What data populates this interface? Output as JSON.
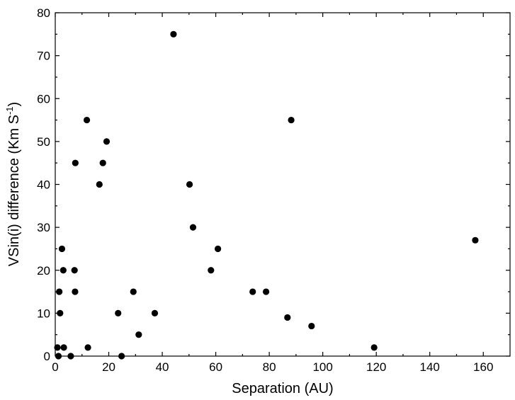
{
  "chart_data": {
    "type": "scatter",
    "title": "",
    "xlabel": "Separation (AU)",
    "ylabel_main": "VSin(i) difference (Km S",
    "ylabel_sup": "-1",
    "ylabel_end": ")",
    "xlim": [
      0,
      170
    ],
    "ylim": [
      0,
      80
    ],
    "x_ticks": [
      0,
      20,
      40,
      60,
      80,
      100,
      120,
      140,
      160
    ],
    "y_ticks": [
      0,
      10,
      20,
      30,
      40,
      50,
      60,
      70,
      80
    ],
    "x_minor_step": 10,
    "y_minor_step": 5,
    "grid": false,
    "legend": "none",
    "marker_color": "#000000",
    "points": [
      {
        "x": 0.8,
        "y": 2
      },
      {
        "x": 1.2,
        "y": 0
      },
      {
        "x": 1.5,
        "y": 15
      },
      {
        "x": 1.8,
        "y": 10
      },
      {
        "x": 2.5,
        "y": 25
      },
      {
        "x": 3.0,
        "y": 20
      },
      {
        "x": 3.2,
        "y": 2
      },
      {
        "x": 5.8,
        "y": 0
      },
      {
        "x": 7.2,
        "y": 20
      },
      {
        "x": 7.4,
        "y": 15
      },
      {
        "x": 7.5,
        "y": 45
      },
      {
        "x": 11.8,
        "y": 55
      },
      {
        "x": 12.2,
        "y": 2
      },
      {
        "x": 16.5,
        "y": 40
      },
      {
        "x": 17.8,
        "y": 45
      },
      {
        "x": 19.2,
        "y": 50
      },
      {
        "x": 23.5,
        "y": 10
      },
      {
        "x": 24.8,
        "y": 0
      },
      {
        "x": 29.2,
        "y": 15
      },
      {
        "x": 31.2,
        "y": 5
      },
      {
        "x": 37.2,
        "y": 10
      },
      {
        "x": 44.2,
        "y": 75
      },
      {
        "x": 50.2,
        "y": 40
      },
      {
        "x": 51.5,
        "y": 30
      },
      {
        "x": 58.2,
        "y": 20
      },
      {
        "x": 60.8,
        "y": 25
      },
      {
        "x": 73.8,
        "y": 15
      },
      {
        "x": 78.8,
        "y": 15
      },
      {
        "x": 86.8,
        "y": 9
      },
      {
        "x": 88.2,
        "y": 55
      },
      {
        "x": 95.8,
        "y": 7
      },
      {
        "x": 119.2,
        "y": 2
      },
      {
        "x": 157.0,
        "y": 27
      }
    ]
  }
}
